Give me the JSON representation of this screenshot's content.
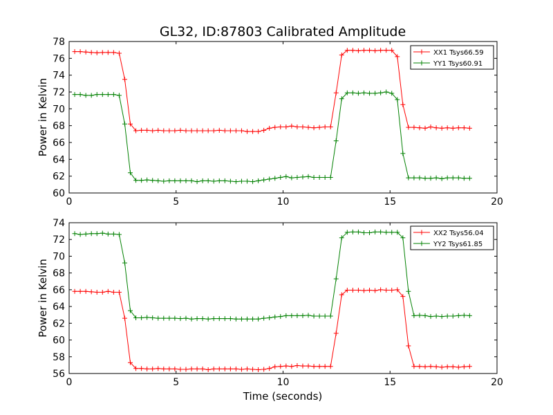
{
  "figure": {
    "title": "GL32, ID:87803 Calibrated Amplitude",
    "xlabel": "Time (seconds)"
  },
  "colors": {
    "red": "#ff0000",
    "green": "#008000"
  },
  "chart_data": [
    {
      "type": "line",
      "title": "GL32, ID:87803 Calibrated Amplitude",
      "xlabel": "",
      "ylabel": "Power in Kelvin",
      "xlim": [
        0,
        20
      ],
      "ylim": [
        60,
        78
      ],
      "xticks": [
        0,
        5,
        10,
        15,
        20
      ],
      "yticks": [
        60,
        62,
        64,
        66,
        68,
        70,
        72,
        74,
        76,
        78
      ],
      "grid": false,
      "legend_position": "top-right",
      "series": [
        {
          "name": "XX1 Tsys66.59",
          "color": "#ff0000",
          "x": [
            0.26,
            0.52,
            0.78,
            1.04,
            1.3,
            1.56,
            1.82,
            2.08,
            2.34,
            2.6,
            2.86,
            3.12,
            3.38,
            3.64,
            3.9,
            4.16,
            4.42,
            4.68,
            4.94,
            5.2,
            5.46,
            5.72,
            5.98,
            6.24,
            6.5,
            6.76,
            7.02,
            7.28,
            7.54,
            7.8,
            8.06,
            8.32,
            8.58,
            8.84,
            9.1,
            9.36,
            9.62,
            9.88,
            10.14,
            10.4,
            10.66,
            10.92,
            11.18,
            11.44,
            11.7,
            11.96,
            12.22,
            12.48,
            12.74,
            13.0,
            13.26,
            13.52,
            13.78,
            14.04,
            14.3,
            14.56,
            14.82,
            15.08,
            15.34,
            15.6,
            15.86,
            16.12,
            16.38,
            16.64,
            16.9,
            17.16,
            17.42,
            17.68,
            17.94,
            18.2,
            18.46,
            18.72
          ],
          "y": [
            76.8,
            76.8,
            76.75,
            76.7,
            76.65,
            76.7,
            76.7,
            76.7,
            76.6,
            73.5,
            68.2,
            67.4,
            67.45,
            67.45,
            67.4,
            67.45,
            67.4,
            67.4,
            67.4,
            67.45,
            67.4,
            67.4,
            67.4,
            67.4,
            67.4,
            67.4,
            67.45,
            67.4,
            67.4,
            67.4,
            67.4,
            67.3,
            67.3,
            67.3,
            67.45,
            67.7,
            67.8,
            67.85,
            67.85,
            67.95,
            67.85,
            67.85,
            67.8,
            67.75,
            67.8,
            67.85,
            67.85,
            71.9,
            76.4,
            76.95,
            76.95,
            76.9,
            76.95,
            76.95,
            76.9,
            76.95,
            76.95,
            76.95,
            76.2,
            70.5,
            67.8,
            67.8,
            67.75,
            67.7,
            67.85,
            67.75,
            67.7,
            67.75,
            67.7,
            67.75,
            67.75,
            67.7
          ]
        },
        {
          "name": "YY1 Tsys60.91",
          "color": "#008000",
          "x": [
            0.26,
            0.52,
            0.78,
            1.04,
            1.3,
            1.56,
            1.82,
            2.08,
            2.34,
            2.6,
            2.86,
            3.12,
            3.38,
            3.64,
            3.9,
            4.16,
            4.42,
            4.68,
            4.94,
            5.2,
            5.46,
            5.72,
            5.98,
            6.24,
            6.5,
            6.76,
            7.02,
            7.28,
            7.54,
            7.8,
            8.06,
            8.32,
            8.58,
            8.84,
            9.1,
            9.36,
            9.62,
            9.88,
            10.14,
            10.4,
            10.66,
            10.92,
            11.18,
            11.44,
            11.7,
            11.96,
            12.22,
            12.48,
            12.74,
            13.0,
            13.26,
            13.52,
            13.78,
            14.04,
            14.3,
            14.56,
            14.82,
            15.08,
            15.34,
            15.6,
            15.86,
            16.12,
            16.38,
            16.64,
            16.9,
            17.16,
            17.42,
            17.68,
            17.94,
            18.2,
            18.46,
            18.72
          ],
          "y": [
            71.7,
            71.7,
            71.6,
            71.6,
            71.7,
            71.7,
            71.7,
            71.7,
            71.6,
            68.2,
            62.4,
            61.5,
            61.5,
            61.55,
            61.5,
            61.45,
            61.4,
            61.45,
            61.45,
            61.45,
            61.45,
            61.45,
            61.35,
            61.45,
            61.45,
            61.4,
            61.45,
            61.45,
            61.4,
            61.35,
            61.4,
            61.4,
            61.35,
            61.45,
            61.55,
            61.65,
            61.75,
            61.85,
            61.95,
            61.8,
            61.85,
            61.9,
            61.95,
            61.85,
            61.85,
            61.85,
            61.85,
            66.2,
            71.2,
            71.9,
            71.9,
            71.85,
            71.9,
            71.85,
            71.85,
            71.9,
            72.0,
            71.85,
            71.1,
            64.7,
            61.8,
            61.8,
            61.8,
            61.75,
            61.75,
            61.8,
            61.7,
            61.8,
            61.8,
            61.8,
            61.75,
            61.75
          ]
        }
      ]
    },
    {
      "type": "line",
      "title": "",
      "xlabel": "Time (seconds)",
      "ylabel": "Power in Kelvin",
      "xlim": [
        0,
        20
      ],
      "ylim": [
        56,
        74
      ],
      "xticks": [
        0,
        5,
        10,
        15,
        20
      ],
      "yticks": [
        56,
        58,
        60,
        62,
        64,
        66,
        68,
        70,
        72,
        74
      ],
      "grid": false,
      "legend_position": "top-right",
      "series": [
        {
          "name": "XX2 Tsys56.04",
          "color": "#ff0000",
          "x": [
            0.26,
            0.52,
            0.78,
            1.04,
            1.3,
            1.56,
            1.82,
            2.08,
            2.34,
            2.6,
            2.86,
            3.12,
            3.38,
            3.64,
            3.9,
            4.16,
            4.42,
            4.68,
            4.94,
            5.2,
            5.46,
            5.72,
            5.98,
            6.24,
            6.5,
            6.76,
            7.02,
            7.28,
            7.54,
            7.8,
            8.06,
            8.32,
            8.58,
            8.84,
            9.1,
            9.36,
            9.62,
            9.88,
            10.14,
            10.4,
            10.66,
            10.92,
            11.18,
            11.44,
            11.7,
            11.96,
            12.22,
            12.48,
            12.74,
            13.0,
            13.26,
            13.52,
            13.78,
            14.04,
            14.3,
            14.56,
            14.82,
            15.08,
            15.34,
            15.6,
            15.86,
            16.12,
            16.38,
            16.64,
            16.9,
            17.16,
            17.42,
            17.68,
            17.94,
            18.2,
            18.46,
            18.72
          ],
          "y": [
            65.8,
            65.8,
            65.8,
            65.75,
            65.7,
            65.7,
            65.8,
            65.7,
            65.7,
            62.6,
            57.3,
            56.6,
            56.6,
            56.55,
            56.55,
            56.6,
            56.55,
            56.55,
            56.55,
            56.5,
            56.5,
            56.55,
            56.55,
            56.55,
            56.45,
            56.55,
            56.55,
            56.55,
            56.55,
            56.55,
            56.5,
            56.55,
            56.5,
            56.45,
            56.5,
            56.6,
            56.8,
            56.85,
            56.9,
            56.85,
            56.95,
            56.9,
            56.9,
            56.85,
            56.85,
            56.85,
            56.85,
            60.8,
            65.4,
            65.95,
            65.95,
            65.95,
            65.9,
            65.95,
            65.9,
            66.0,
            65.95,
            65.95,
            66.0,
            65.2,
            59.3,
            56.85,
            56.85,
            56.8,
            56.85,
            56.8,
            56.75,
            56.8,
            56.8,
            56.75,
            56.8,
            56.85
          ]
        },
        {
          "name": "YY2 Tsys61.85",
          "color": "#008000",
          "x": [
            0.26,
            0.52,
            0.78,
            1.04,
            1.3,
            1.56,
            1.82,
            2.08,
            2.34,
            2.6,
            2.86,
            3.12,
            3.38,
            3.64,
            3.9,
            4.16,
            4.42,
            4.68,
            4.94,
            5.2,
            5.46,
            5.72,
            5.98,
            6.24,
            6.5,
            6.76,
            7.02,
            7.28,
            7.54,
            7.8,
            8.06,
            8.32,
            8.58,
            8.84,
            9.1,
            9.36,
            9.62,
            9.88,
            10.14,
            10.4,
            10.66,
            10.92,
            11.18,
            11.44,
            11.7,
            11.96,
            12.22,
            12.48,
            12.74,
            13.0,
            13.26,
            13.52,
            13.78,
            14.04,
            14.3,
            14.56,
            14.82,
            15.08,
            15.34,
            15.6,
            15.86,
            16.12,
            16.38,
            16.64,
            16.9,
            17.16,
            17.42,
            17.68,
            17.94,
            18.2,
            18.46,
            18.72
          ],
          "y": [
            72.7,
            72.6,
            72.65,
            72.7,
            72.7,
            72.75,
            72.65,
            72.65,
            72.6,
            69.2,
            63.5,
            62.65,
            62.65,
            62.7,
            62.65,
            62.6,
            62.6,
            62.6,
            62.6,
            62.55,
            62.6,
            62.5,
            62.55,
            62.55,
            62.5,
            62.55,
            62.55,
            62.55,
            62.55,
            62.5,
            62.5,
            62.5,
            62.5,
            62.5,
            62.6,
            62.65,
            62.75,
            62.8,
            62.9,
            62.9,
            62.9,
            62.9,
            62.95,
            62.85,
            62.85,
            62.85,
            62.85,
            67.3,
            72.2,
            72.85,
            72.9,
            72.9,
            72.8,
            72.8,
            72.9,
            72.9,
            72.85,
            72.85,
            72.85,
            72.2,
            65.8,
            62.9,
            62.95,
            62.9,
            62.8,
            62.85,
            62.8,
            62.85,
            62.85,
            62.9,
            62.95,
            62.9
          ]
        }
      ]
    }
  ]
}
